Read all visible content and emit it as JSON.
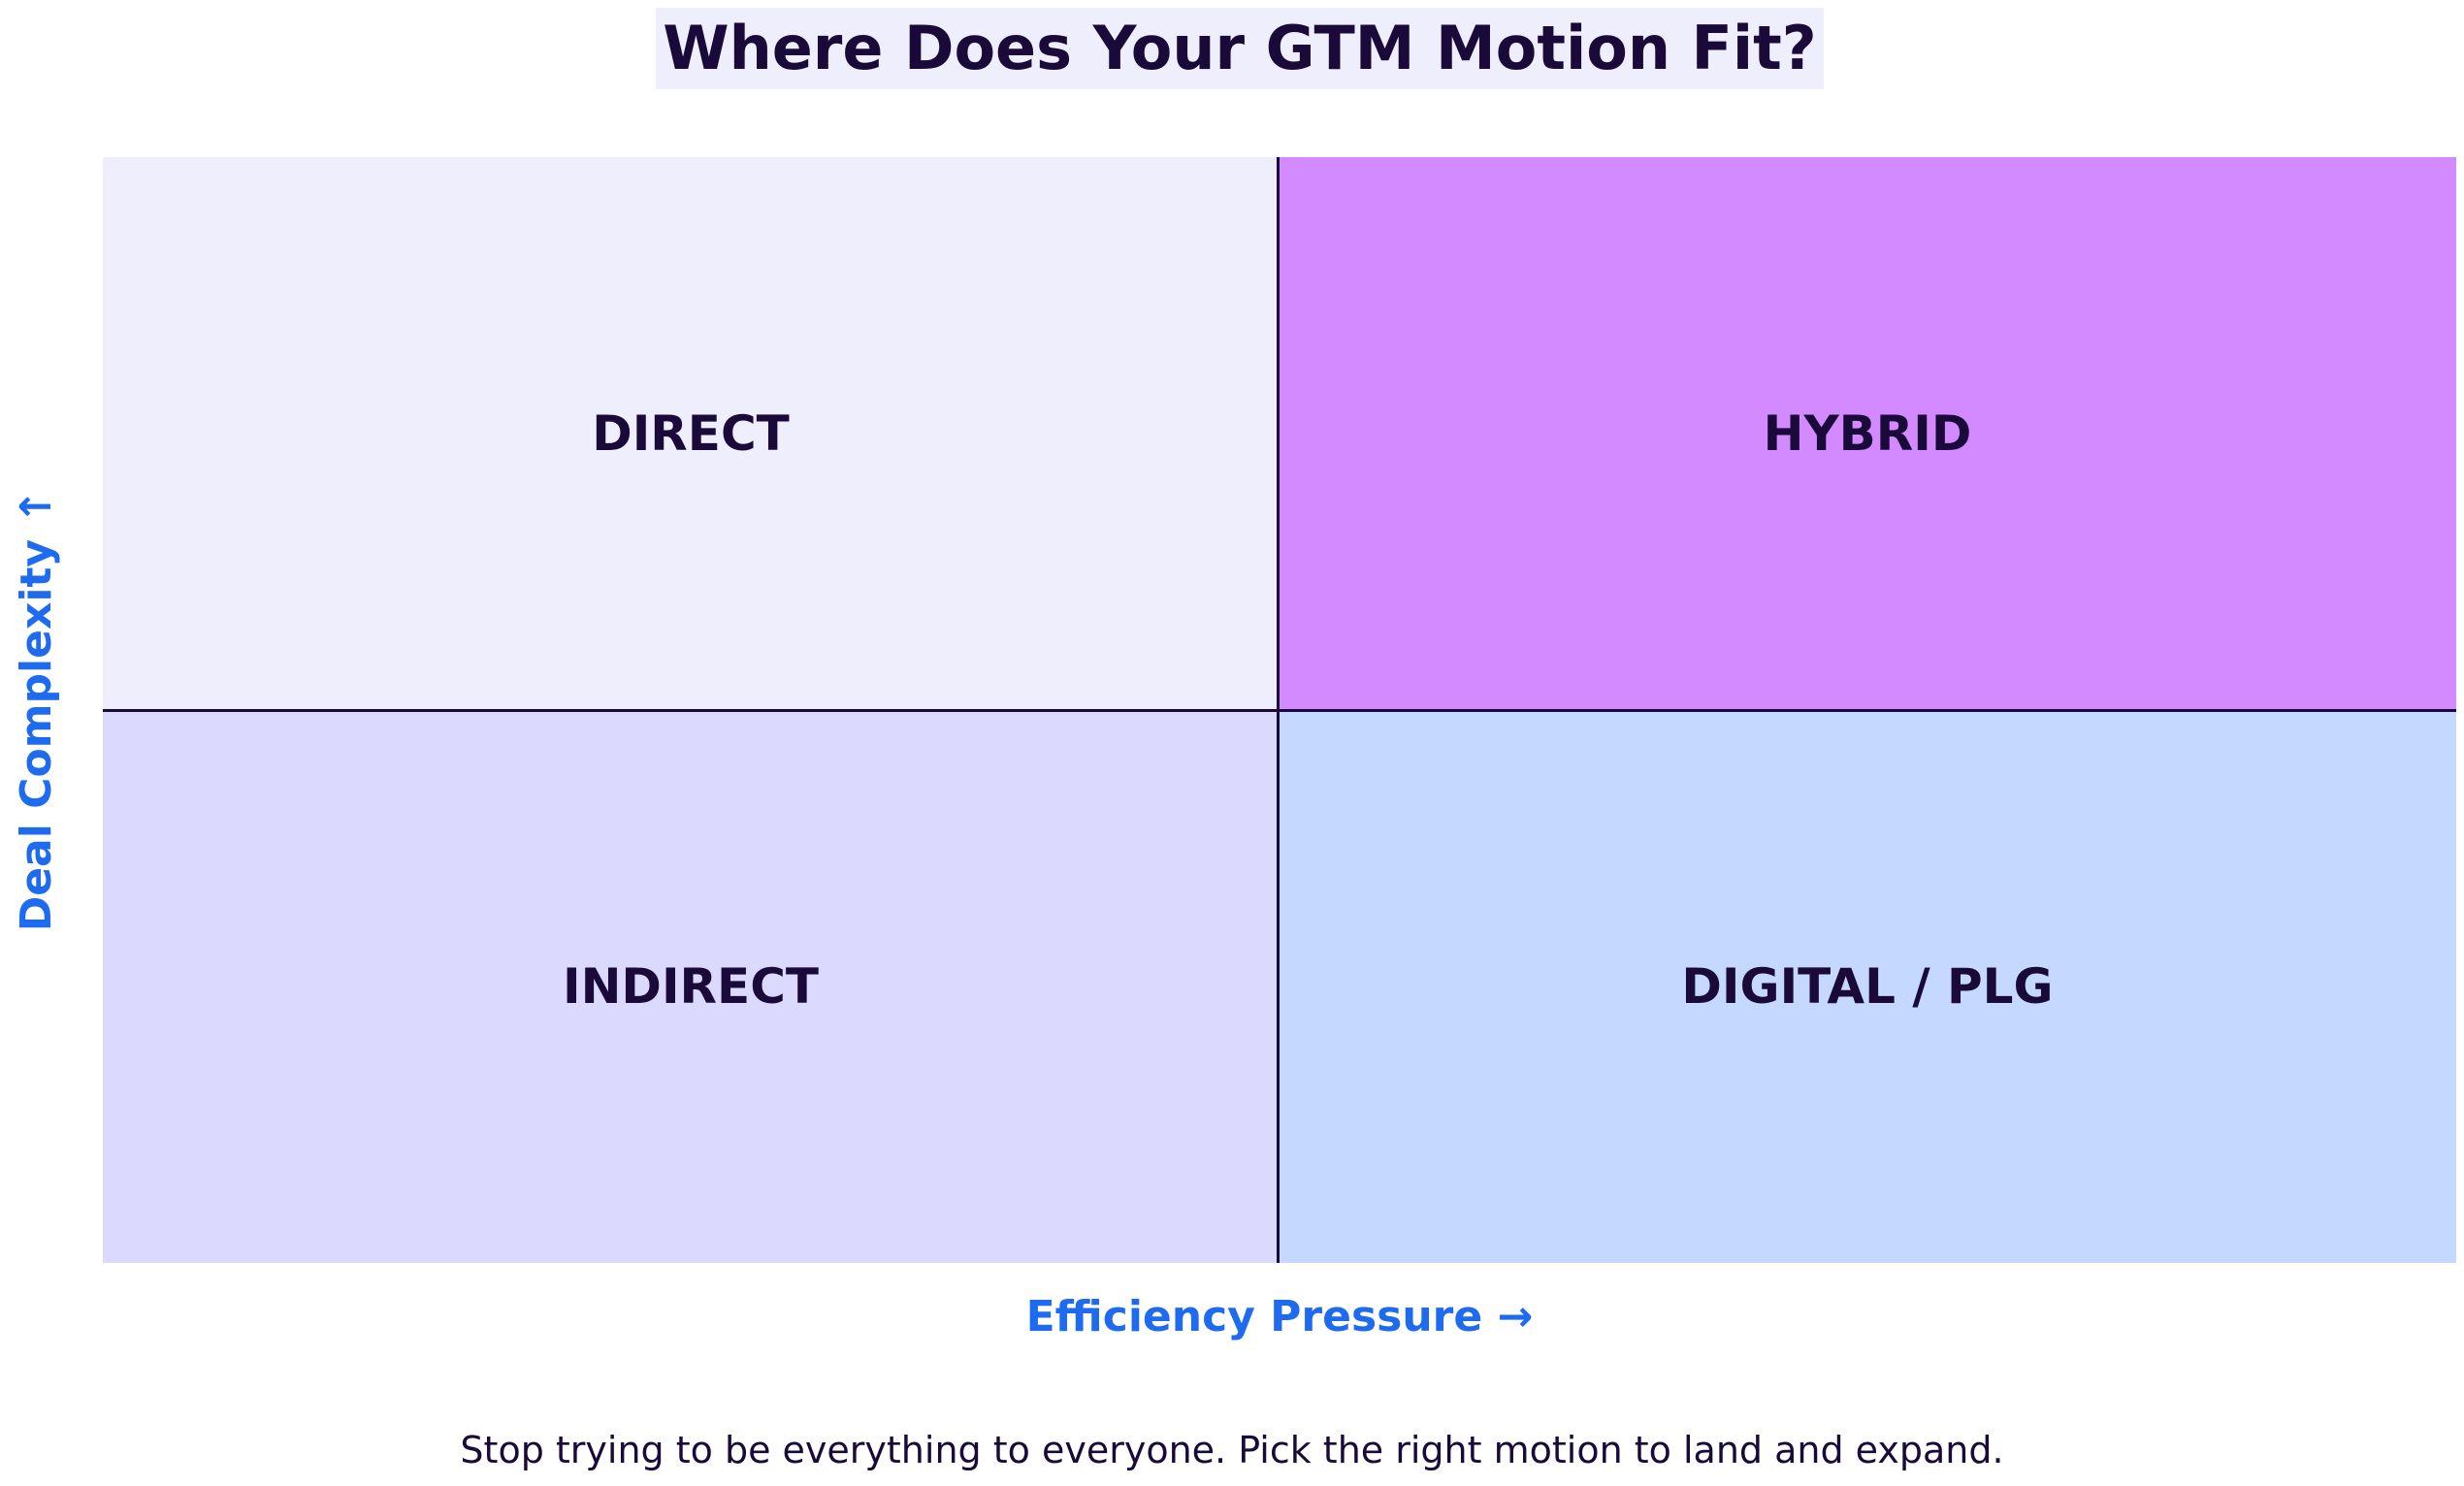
{
  "title": "Where Does Your GTM Motion Fit?",
  "quadrants": {
    "top_left": {
      "label": "DIRECT",
      "color": "#efeefc"
    },
    "top_right": {
      "label": "HYBRID",
      "color": "#d48aff"
    },
    "bottom_left": {
      "label": "INDIRECT",
      "color": "#dcd9ff"
    },
    "bottom_right": {
      "label": "DIGITAL / PLG",
      "color": "#c5d8ff"
    }
  },
  "axes": {
    "x_label": "Efficiency Pressure →",
    "y_label": "Deal Complexity ↑",
    "color": "#1f6bf0"
  },
  "footer": "Stop trying to be everything to everyone. Pick the right motion to land and expand.",
  "colors": {
    "text": "#1a0a3a",
    "divider": "#1a0a3a",
    "title_background": "#efeefc"
  }
}
